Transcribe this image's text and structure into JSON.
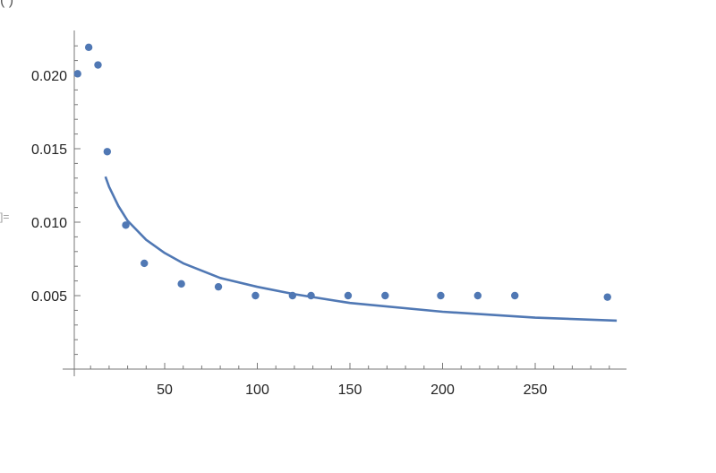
{
  "cell": {
    "out_label": "]=",
    "top_fragment": "(                    )"
  },
  "colors": {
    "series": "#5078b4",
    "axis": "#777777",
    "text": "#222222"
  },
  "chart_data": {
    "type": "scatter",
    "title": "",
    "xlabel": "",
    "ylabel": "",
    "xlim": [
      0,
      295
    ],
    "ylim": [
      0,
      0.0235
    ],
    "grid": false,
    "legend": "none",
    "x_ticks": [
      50,
      100,
      150,
      200,
      250
    ],
    "x_tick_labels": [
      "50",
      "100",
      "150",
      "200",
      "250"
    ],
    "y_ticks": [
      0.005,
      0.01,
      0.015,
      0.02
    ],
    "y_tick_labels": [
      "0.005",
      "0.010",
      "0.015",
      "0.020"
    ],
    "series": [
      {
        "kind": "points",
        "x": [
          3,
          9,
          14,
          19,
          29,
          39,
          59,
          79,
          99,
          119,
          129,
          149,
          169,
          199,
          219,
          239,
          289
        ],
        "y": [
          0.0201,
          0.0219,
          0.0207,
          0.0148,
          0.0098,
          0.0072,
          0.0058,
          0.0056,
          0.005,
          0.005,
          0.005,
          0.005,
          0.005,
          0.005,
          0.005,
          0.005,
          0.0049
        ]
      },
      {
        "kind": "line",
        "x": [
          18,
          20,
          25,
          30,
          40,
          50,
          60,
          80,
          100,
          120,
          150,
          200,
          250,
          294
        ],
        "y": [
          0.0131,
          0.0124,
          0.0111,
          0.0101,
          0.0088,
          0.0079,
          0.0072,
          0.0062,
          0.0056,
          0.0051,
          0.0045,
          0.0039,
          0.0035,
          0.0033
        ]
      }
    ]
  }
}
